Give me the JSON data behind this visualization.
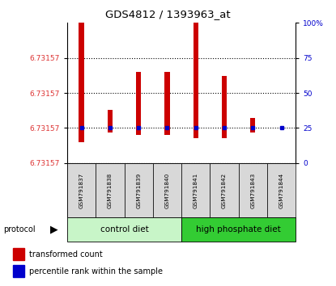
{
  "title": "GDS4812 / 1393963_at",
  "samples": [
    "GSM791837",
    "GSM791838",
    "GSM791839",
    "GSM791840",
    "GSM791841",
    "GSM791842",
    "GSM791843",
    "GSM791844"
  ],
  "bar_tops": [
    100,
    38,
    65,
    65,
    100,
    62,
    32,
    25
  ],
  "bar_bottoms": [
    15,
    22,
    20,
    20,
    18,
    18,
    22,
    25
  ],
  "percentile_rank": [
    25,
    25,
    25,
    25,
    25,
    25,
    25,
    25
  ],
  "bar_color": "#cc0000",
  "percentile_color": "#0000cc",
  "ytick_label": "6.73157",
  "ylim": [
    0,
    100
  ],
  "right_yticks": [
    0,
    25,
    50,
    75,
    100
  ],
  "right_yticklabels": [
    "0",
    "25",
    "50",
    "75",
    "100%"
  ],
  "left_ytick_positions": [
    0,
    25,
    50,
    75
  ],
  "hline_positions": [
    75,
    50,
    25,
    0
  ],
  "groups": [
    {
      "label": "control diet",
      "start": 0,
      "end": 4,
      "color": "#c8f5c8"
    },
    {
      "label": "high phosphate diet",
      "start": 4,
      "end": 8,
      "color": "#33cc33"
    }
  ],
  "protocol_label": "protocol",
  "legend_red_label": "transformed count",
  "legend_blue_label": "percentile rank within the sample",
  "tick_label_color_left": "#dd3333",
  "tick_label_color_right": "#0000cc",
  "bar_width": 0.18
}
